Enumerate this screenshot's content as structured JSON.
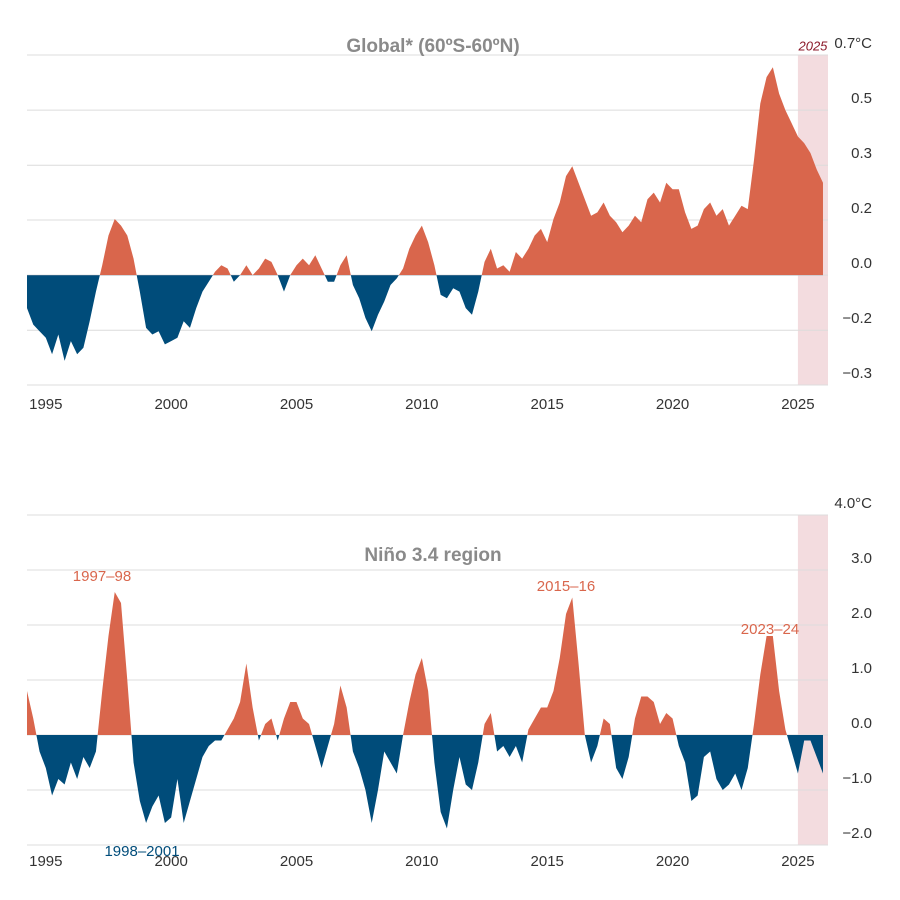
{
  "chart_data": [
    {
      "type": "area",
      "title": "Global* (60ºS-60ºN)",
      "highlight": {
        "from": 2025,
        "to": 2026.2,
        "label": "2025"
      },
      "x": [
        1994.25,
        1994.5,
        1994.75,
        1995,
        1995.25,
        1995.5,
        1995.75,
        1996,
        1996.25,
        1996.5,
        1996.75,
        1997,
        1997.25,
        1997.5,
        1997.75,
        1998,
        1998.25,
        1998.5,
        1998.75,
        1999,
        1999.25,
        1999.5,
        1999.75,
        2000,
        2000.25,
        2000.5,
        2000.75,
        2001,
        2001.25,
        2001.5,
        2001.75,
        2002,
        2002.25,
        2002.5,
        2002.75,
        2003,
        2003.25,
        2003.5,
        2003.75,
        2004,
        2004.25,
        2004.5,
        2004.75,
        2005,
        2005.25,
        2005.5,
        2005.75,
        2006,
        2006.25,
        2006.5,
        2006.75,
        2007,
        2007.25,
        2007.5,
        2007.75,
        2008,
        2008.25,
        2008.5,
        2008.75,
        2009,
        2009.25,
        2009.5,
        2009.75,
        2010,
        2010.25,
        2010.5,
        2010.75,
        2011,
        2011.25,
        2011.5,
        2011.75,
        2012,
        2012.25,
        2012.5,
        2012.75,
        2013,
        2013.25,
        2013.5,
        2013.75,
        2014,
        2014.25,
        2014.5,
        2014.75,
        2015,
        2015.25,
        2015.5,
        2015.75,
        2016,
        2016.25,
        2016.5,
        2016.75,
        2017,
        2017.25,
        2017.5,
        2017.75,
        2018,
        2018.25,
        2018.5,
        2018.75,
        2019,
        2019.25,
        2019.5,
        2019.75,
        2020,
        2020.25,
        2020.5,
        2020.75,
        2021,
        2021.25,
        2021.5,
        2021.75,
        2022,
        2022.25,
        2022.5,
        2022.75,
        2023,
        2023.25,
        2023.5,
        2023.75,
        2024,
        2024.25,
        2024.5,
        2024.75,
        2025,
        2025.25,
        2025.5,
        2025.75,
        2026
      ],
      "series": [
        {
          "color": "#d9664c",
          "negative_color": "#004c7a",
          "values": [
            -0.1,
            -0.15,
            -0.17,
            -0.19,
            -0.24,
            -0.18,
            -0.26,
            -0.2,
            -0.24,
            -0.22,
            -0.14,
            -0.05,
            0.03,
            0.12,
            0.17,
            0.15,
            0.12,
            0.05,
            -0.05,
            -0.16,
            -0.18,
            -0.17,
            -0.21,
            -0.2,
            -0.19,
            -0.14,
            -0.16,
            -0.1,
            -0.05,
            -0.02,
            0.01,
            0.03,
            0.02,
            -0.02,
            0.0,
            0.03,
            0.0,
            0.02,
            0.05,
            0.04,
            0.0,
            -0.05,
            0.0,
            0.03,
            0.05,
            0.03,
            0.06,
            0.02,
            -0.02,
            -0.02,
            0.03,
            0.06,
            -0.03,
            -0.07,
            -0.13,
            -0.17,
            -0.12,
            -0.08,
            -0.03,
            -0.01,
            0.02,
            0.08,
            0.12,
            0.15,
            0.1,
            0.03,
            -0.06,
            -0.07,
            -0.04,
            -0.05,
            -0.1,
            -0.12,
            -0.05,
            0.04,
            0.08,
            0.02,
            0.03,
            0.01,
            0.07,
            0.05,
            0.08,
            0.12,
            0.14,
            0.1,
            0.17,
            0.22,
            0.3,
            0.33,
            0.28,
            0.23,
            0.18,
            0.19,
            0.22,
            0.18,
            0.16,
            0.13,
            0.15,
            0.18,
            0.16,
            0.23,
            0.25,
            0.22,
            0.28,
            0.26,
            0.26,
            0.19,
            0.14,
            0.15,
            0.2,
            0.22,
            0.18,
            0.2,
            0.15,
            0.18,
            0.21,
            0.2,
            0.35,
            0.52,
            0.6,
            0.63,
            0.55,
            0.5,
            0.46,
            0.42,
            0.4,
            0.37,
            0.32,
            0.28
          ]
        }
      ],
      "xlim": [
        1994.25,
        2026.2
      ],
      "xticks": [
        1995,
        2000,
        2005,
        2010,
        2015,
        2020,
        2025
      ],
      "ylim": [
        -0.333,
        0.667
      ],
      "yticks": [
        {
          "value": -0.333,
          "label": "−0.3"
        },
        {
          "value": -0.167,
          "label": "−0.2"
        },
        {
          "value": 0,
          "label": "0.0"
        },
        {
          "value": 0.167,
          "label": "0.2"
        },
        {
          "value": 0.333,
          "label": "0.3"
        },
        {
          "value": 0.5,
          "label": "0.5"
        },
        {
          "value": 0.667,
          "label": "0.7°C"
        }
      ],
      "grid": true,
      "annotations": []
    },
    {
      "type": "area",
      "title": "Niño 3.4 region",
      "highlight": {
        "from": 2025,
        "to": 2026.2
      },
      "x": [
        1994.25,
        1994.5,
        1994.75,
        1995,
        1995.25,
        1995.5,
        1995.75,
        1996,
        1996.25,
        1996.5,
        1996.75,
        1997,
        1997.25,
        1997.5,
        1997.75,
        1998,
        1998.25,
        1998.5,
        1998.75,
        1999,
        1999.25,
        1999.5,
        1999.75,
        2000,
        2000.25,
        2000.5,
        2000.75,
        2001,
        2001.25,
        2001.5,
        2001.75,
        2002,
        2002.25,
        2002.5,
        2002.75,
        2003,
        2003.25,
        2003.5,
        2003.75,
        2004,
        2004.25,
        2004.5,
        2004.75,
        2005,
        2005.25,
        2005.5,
        2005.75,
        2006,
        2006.25,
        2006.5,
        2006.75,
        2007,
        2007.25,
        2007.5,
        2007.75,
        2008,
        2008.25,
        2008.5,
        2008.75,
        2009,
        2009.25,
        2009.5,
        2009.75,
        2010,
        2010.25,
        2010.5,
        2010.75,
        2011,
        2011.25,
        2011.5,
        2011.75,
        2012,
        2012.25,
        2012.5,
        2012.75,
        2013,
        2013.25,
        2013.5,
        2013.75,
        2014,
        2014.25,
        2014.5,
        2014.75,
        2015,
        2015.25,
        2015.5,
        2015.75,
        2016,
        2016.25,
        2016.5,
        2016.75,
        2017,
        2017.25,
        2017.5,
        2017.75,
        2018,
        2018.25,
        2018.5,
        2018.75,
        2019,
        2019.25,
        2019.5,
        2019.75,
        2020,
        2020.25,
        2020.5,
        2020.75,
        2021,
        2021.25,
        2021.5,
        2021.75,
        2022,
        2022.25,
        2022.5,
        2022.75,
        2023,
        2023.25,
        2023.5,
        2023.75,
        2024,
        2024.25,
        2024.5,
        2024.75,
        2025,
        2025.25,
        2025.5,
        2025.75,
        2026
      ],
      "series": [
        {
          "color": "#d9664c",
          "negative_color": "#004c7a",
          "values": [
            0.8,
            0.3,
            -0.3,
            -0.6,
            -1.1,
            -0.8,
            -0.9,
            -0.5,
            -0.8,
            -0.4,
            -0.6,
            -0.3,
            0.8,
            1.8,
            2.6,
            2.4,
            1.0,
            -0.5,
            -1.2,
            -1.6,
            -1.3,
            -1.1,
            -1.6,
            -1.5,
            -0.8,
            -1.6,
            -1.2,
            -0.8,
            -0.4,
            -0.2,
            -0.1,
            -0.1,
            0.1,
            0.3,
            0.6,
            1.3,
            0.5,
            -0.1,
            0.2,
            0.3,
            -0.1,
            0.3,
            0.6,
            0.6,
            0.3,
            0.2,
            -0.2,
            -0.6,
            -0.2,
            0.2,
            0.9,
            0.5,
            -0.3,
            -0.6,
            -1.0,
            -1.6,
            -1.0,
            -0.3,
            -0.5,
            -0.7,
            0.0,
            0.6,
            1.1,
            1.4,
            0.8,
            -0.5,
            -1.4,
            -1.7,
            -1.0,
            -0.4,
            -0.9,
            -1.0,
            -0.5,
            0.2,
            0.4,
            -0.3,
            -0.2,
            -0.4,
            -0.2,
            -0.5,
            0.1,
            0.3,
            0.5,
            0.5,
            0.8,
            1.4,
            2.2,
            2.5,
            1.3,
            0.0,
            -0.5,
            -0.2,
            0.3,
            0.2,
            -0.6,
            -0.8,
            -0.4,
            0.3,
            0.7,
            0.7,
            0.6,
            0.2,
            0.4,
            0.3,
            -0.2,
            -0.5,
            -1.2,
            -1.1,
            -0.4,
            -0.3,
            -0.8,
            -1.0,
            -0.9,
            -0.7,
            -1.0,
            -0.6,
            0.2,
            1.1,
            1.8,
            1.8,
            0.8,
            0.1,
            -0.3,
            -0.7,
            -0.1,
            -0.1,
            -0.4,
            -0.7
          ]
        }
      ],
      "xlim": [
        1994.25,
        2026.2
      ],
      "xticks": [
        1995,
        2000,
        2005,
        2010,
        2015,
        2020,
        2025
      ],
      "ylim": [
        -2,
        4
      ],
      "yticks": [
        {
          "value": -2,
          "label": "−2.0"
        },
        {
          "value": -1,
          "label": "−1.0"
        },
        {
          "value": 0,
          "label": "0.0"
        },
        {
          "value": 1,
          "label": "1.0"
        },
        {
          "value": 2,
          "label": "2.0"
        },
        {
          "value": 3,
          "label": "3.0"
        },
        {
          "value": 4,
          "label": "4.0°C"
        }
      ],
      "grid": true,
      "annotations": [
        {
          "text": "1997–98",
          "color": "#d9664c"
        },
        {
          "text": "2015–16",
          "color": "#d9664c"
        },
        {
          "text": "2023–24",
          "color": "#d9664c"
        },
        {
          "text": "1998–2001",
          "color": "#004c7a"
        }
      ]
    }
  ]
}
